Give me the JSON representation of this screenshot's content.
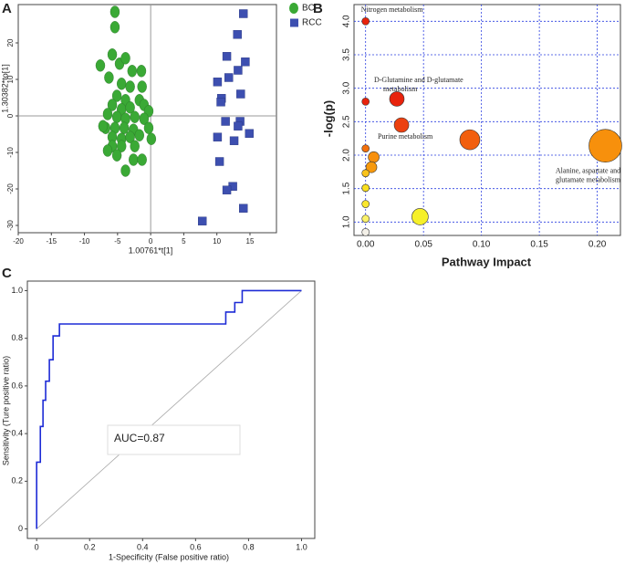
{
  "chart_data": [
    {
      "type": "scatter",
      "panel": "A",
      "xlabel": "1.00761*t[1]",
      "ylabel": "1.30382*to[1]",
      "xlim": [
        -20,
        19
      ],
      "ylim": [
        -32,
        30.5
      ],
      "xticks": [
        -20,
        -15,
        -10,
        -5,
        0,
        5,
        10,
        15
      ],
      "yticks": [
        -30,
        -20,
        -10,
        0,
        10,
        20
      ],
      "series": [
        {
          "name": "BC",
          "color": "#3aa935",
          "marker": "ellipse",
          "x": [
            -5.4,
            -5.4,
            -5.8,
            -7.6,
            -4.7,
            -3.8,
            -2.8,
            -1.4,
            -6.3,
            -4.4,
            -3.1,
            -1.3,
            -5.1,
            -3.8,
            -1.7,
            -5.8,
            -4.4,
            -3.1,
            -1.0,
            -0.3,
            -6.5,
            -5.1,
            -3.8,
            -2.4,
            -1.0,
            -6.8,
            -5.4,
            -4.0,
            -2.6,
            -0.3,
            -5.8,
            -4.4,
            -3.1,
            -1.7,
            -5.8,
            -4.4,
            -2.4,
            0.1,
            -5.1,
            -2.6,
            -1.3,
            -3.8,
            -7.2,
            -6.5
          ],
          "y": [
            28.5,
            24.3,
            16.8,
            13.8,
            14.3,
            15.8,
            12.3,
            12.3,
            10.5,
            8.8,
            8,
            8,
            5.5,
            4.3,
            4.3,
            3,
            1.8,
            2.3,
            3,
            1.3,
            0.5,
            -0.3,
            -0.8,
            -0.3,
            -0.8,
            -3.3,
            -3.3,
            -3.3,
            -3.8,
            -3.3,
            -5.8,
            -6.3,
            -5.8,
            -5.3,
            -8.3,
            -8.3,
            -8.3,
            -6.3,
            -10.8,
            -12,
            -12,
            -15,
            -2.8,
            -9.5
          ]
        },
        {
          "name": "RCC",
          "color": "#3d4fb0",
          "marker": "square",
          "x": [
            14.0,
            13.1,
            14.3,
            11.5,
            13.2,
            11.8,
            10.1,
            10.7,
            10.6,
            13.6,
            13.5,
            11.3,
            13.2,
            14.9,
            12.6,
            10.1,
            10.4,
            12.4,
            11.5,
            14.0,
            7.8
          ],
          "y": [
            28,
            22.3,
            14.8,
            16.3,
            12.5,
            10.5,
            9.3,
            4.8,
            3.8,
            6,
            -1.5,
            -1.5,
            -2.8,
            -4.8,
            -6.8,
            -5.8,
            -12.5,
            -19.3,
            -20.3,
            -25.3,
            -28.8
          ]
        }
      ]
    },
    {
      "type": "bubble",
      "panel": "B",
      "xlabel": "Pathway Impact",
      "ylabel": "-log(p)",
      "grid": true,
      "xlim": [
        -0.01,
        0.22
      ],
      "ylim": [
        0.8,
        4.25
      ],
      "xticks": [
        {
          "value": 0,
          "label": "0.00"
        },
        {
          "value": 0.05,
          "label": "0.05"
        },
        {
          "value": 0.1,
          "label": "0.10"
        },
        {
          "value": 0.15,
          "label": "0.15"
        },
        {
          "value": 0.2,
          "label": "0.20"
        }
      ],
      "yticks": [
        {
          "value": 1,
          "label": "1.0"
        },
        1.5,
        {
          "value": 2,
          "label": "2.0"
        },
        2.5,
        {
          "value": 3,
          "label": "3.0"
        },
        3.5,
        {
          "value": 4,
          "label": "4.0"
        }
      ],
      "x": [
        0,
        0,
        0.027,
        0.031,
        0.09,
        0.207,
        0,
        0.007,
        0.005,
        0,
        0,
        0,
        0.047,
        0,
        0
      ],
      "y": [
        4.0,
        2.8,
        2.84,
        2.45,
        2.23,
        2.14,
        2.1,
        1.97,
        1.82,
        1.73,
        1.51,
        1.27,
        1.08,
        1.05,
        0.85
      ],
      "sizes": [
        4,
        4,
        8,
        8,
        11,
        18,
        4,
        6,
        6,
        4,
        4,
        4,
        9,
        4,
        4
      ],
      "colors": [
        "#e8230c",
        "#e8230c",
        "#e8230c",
        "#ec4010",
        "#f25f0e",
        "#f7900c",
        "#f2700c",
        "#f7900c",
        "#f7990c",
        "#f9c31a",
        "#f9df1f",
        "#fae72e",
        "#f6f02a",
        "#fbf26a",
        "#f3f0e8"
      ],
      "annotations": [
        {
          "point": 0,
          "lines": [
            "Nitrogen metabolism"
          ]
        },
        {
          "point": 2,
          "lines": [
            "D-Glutamine and D-glutamate",
            "metabolism"
          ]
        },
        {
          "point": 3,
          "lines": [
            "Purine metabolism"
          ]
        },
        {
          "point": 5,
          "lines": [
            "Alanine, aspartate and",
            "glutamate metabolism"
          ]
        }
      ]
    },
    {
      "type": "line",
      "panel": "C",
      "xlabel": "1-Specificity (False positive ratio)",
      "ylabel": "Sensitivity (Ture positive ratio)",
      "xlim": [
        -0.035,
        1.05
      ],
      "ylim": [
        -0.04,
        1.04
      ],
      "xticks": [
        0,
        0.2,
        0.4,
        0.6,
        0.8,
        {
          "value": 1,
          "label": "1.0"
        }
      ],
      "yticks": [
        0,
        0.2,
        0.4,
        0.6,
        0.8,
        {
          "value": 1,
          "label": "1.0"
        }
      ],
      "annotation": "AUC=0.87",
      "series": [
        {
          "color": "#1d2bd6",
          "x": [
            0,
            0,
            0.014,
            0.014,
            0.024,
            0.024,
            0.034,
            0.034,
            0.048,
            0.048,
            0.062,
            0.062,
            0.086,
            0.086,
            0.714,
            0.714,
            0.748,
            0.748,
            0.776,
            0.776,
            1
          ],
          "y": [
            0,
            0.28,
            0.28,
            0.43,
            0.43,
            0.54,
            0.54,
            0.62,
            0.62,
            0.71,
            0.71,
            0.81,
            0.81,
            0.86,
            0.86,
            0.91,
            0.91,
            0.95,
            0.95,
            1,
            1
          ]
        }
      ]
    }
  ]
}
